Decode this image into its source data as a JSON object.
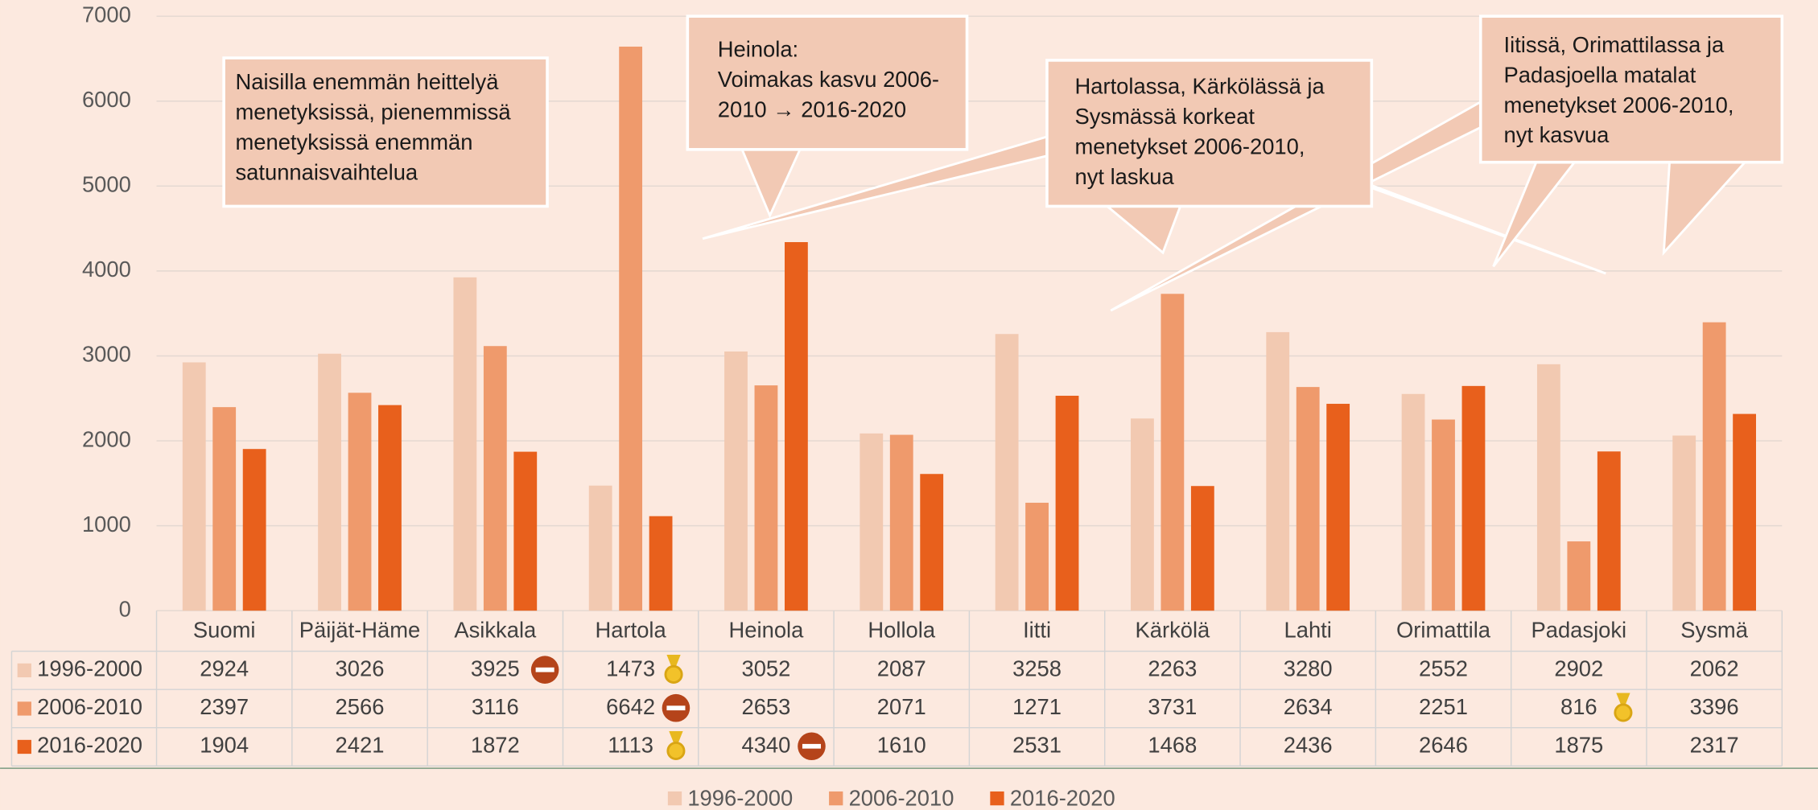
{
  "chart_data": {
    "type": "bar",
    "categories": [
      "Suomi",
      "Päijät-Häme",
      "Asikkala",
      "Hartola",
      "Heinola",
      "Hollola",
      "Iitti",
      "Kärkölä",
      "Lahti",
      "Orimattila",
      "Padasjoki",
      "Sysmä"
    ],
    "series": [
      {
        "name": "1996-2000",
        "color": "#f2c9b1",
        "values": [
          2924,
          3026,
          3925,
          1473,
          3052,
          2087,
          3258,
          2263,
          3280,
          2552,
          2902,
          2062
        ]
      },
      {
        "name": "2006-2010",
        "color": "#ef9a6c",
        "values": [
          2397,
          2566,
          3116,
          6642,
          2653,
          2071,
          1271,
          3731,
          2634,
          2251,
          816,
          3396
        ]
      },
      {
        "name": "2016-2020",
        "color": "#e8601c",
        "values": [
          1904,
          2421,
          1872,
          1113,
          4340,
          1610,
          2531,
          1468,
          2436,
          2646,
          1875,
          2317
        ]
      }
    ],
    "ylim": [
      0,
      7000
    ],
    "yticks": [
      0,
      1000,
      2000,
      3000,
      4000,
      5000,
      6000,
      7000
    ],
    "grid": true,
    "annotations": [
      {
        "lines": [
          "Naisilla enemmän heittelyä",
          "menetyksissä, pienemmissä",
          "menetyksissä enemmän",
          "satunnaisvaihtelua"
        ]
      },
      {
        "lines": [
          "Heinola:",
          "Voimakas kasvu 2006-",
          "2010 → 2016-2020"
        ]
      },
      {
        "lines": [
          "Hartolassa, Kärkölässä ja",
          "Sysmässä korkeat",
          "menetykset 2006-2010,",
          "nyt laskua"
        ]
      },
      {
        "lines": [
          "Iitissä, Orimattilassa ja",
          "Padasjoella matalat",
          "menetykset 2006-2010,",
          "nyt kasvua"
        ]
      }
    ]
  }
}
